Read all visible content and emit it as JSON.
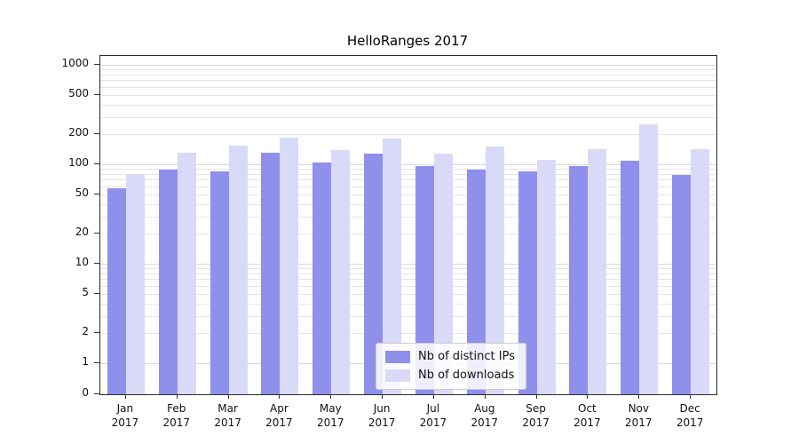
{
  "page": {
    "background": "#ffffff"
  },
  "chart_data": {
    "type": "bar",
    "title": "HelloRanges 2017",
    "categories": [
      "Jan",
      "Feb",
      "Mar",
      "Apr",
      "May",
      "Jun",
      "Jul",
      "Aug",
      "Sep",
      "Oct",
      "Nov",
      "Dec"
    ],
    "x_year": "2017",
    "series": [
      {
        "name": "Nb of distinct IPs",
        "color": "#8f8fec",
        "values": [
          58,
          88,
          85,
          130,
          105,
          128,
          97,
          88,
          85,
          97,
          108,
          78
        ]
      },
      {
        "name": "Nb of downloads",
        "color": "#d9d9f8",
        "values": [
          80,
          130,
          155,
          185,
          140,
          180,
          128,
          150,
          110,
          142,
          250,
          142
        ]
      }
    ],
    "yscale": "symlog",
    "yticks": [
      0,
      1,
      2,
      5,
      10,
      20,
      50,
      100,
      200,
      500,
      1000
    ],
    "ylim": [
      0,
      1230
    ],
    "grid": true,
    "legend_position": "lower center"
  }
}
